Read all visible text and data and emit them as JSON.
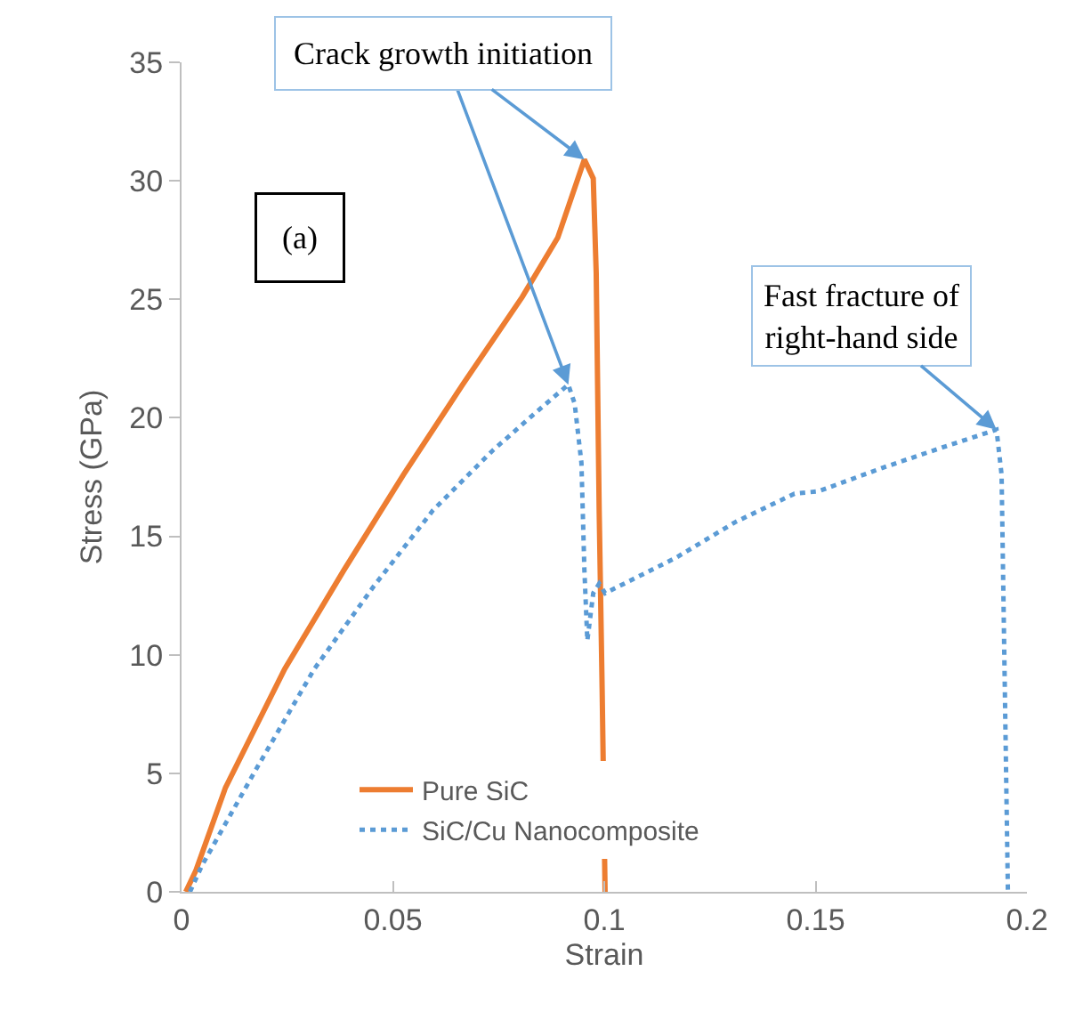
{
  "chart_data": {
    "type": "line",
    "xlabel": "Strain",
    "ylabel": "Stress (GPa)",
    "xlim": [
      0,
      0.2
    ],
    "xticks": [
      0,
      0.05,
      0.1,
      0.15,
      0.2
    ],
    "ylim": [
      0,
      35
    ],
    "yticks": [
      0,
      5,
      10,
      15,
      20,
      25,
      30,
      35
    ],
    "legend": "bottom left",
    "marker": "none",
    "series": [
      {
        "name": "Pure SiC",
        "color": "#ed7d31",
        "line_style": "solid",
        "x": [
          0.001,
          0.0034,
          0.0104,
          0.0174,
          0.0244,
          0.0385,
          0.0525,
          0.0665,
          0.0806,
          0.089,
          0.0953,
          0.0974,
          0.0981,
          0.0988,
          0.0995,
          0.1002
        ],
        "values": [
          0,
          0.9,
          4.4,
          6.9,
          9.4,
          13.6,
          17.6,
          21.4,
          25.1,
          27.6,
          30.9,
          30.1,
          26.1,
          16.1,
          8.6,
          0
        ]
      },
      {
        "name": "SiC/Cu Nanocomposite",
        "color": "#5b9bd5",
        "line_style": "dotted",
        "x": [
          0.002,
          0.0048,
          0.0174,
          0.0314,
          0.0455,
          0.0595,
          0.0735,
          0.083,
          0.0915,
          0.093,
          0.0946,
          0.0953,
          0.096,
          0.0974,
          0.0988,
          0.1002,
          0.117,
          0.131,
          0.145,
          0.1507,
          0.166,
          0.18,
          0.1928,
          0.194,
          0.1955
        ],
        "values": [
          0,
          1.1,
          5.1,
          9.4,
          12.9,
          16.1,
          18.6,
          20.1,
          21.4,
          20.6,
          18.1,
          13.6,
          10.6,
          12.6,
          13,
          12.6,
          14.1,
          15.6,
          16.8,
          16.9,
          17.9,
          18.75,
          19.5,
          17.6,
          0
        ]
      }
    ],
    "annotations": [
      {
        "text": "Crack growth initiation",
        "x": 0.0953,
        "y": 30.9
      },
      {
        "text": "Fast fracture of\nright-hand side",
        "x": 0.1928,
        "y": 19.5
      },
      "(a)"
    ]
  }
}
